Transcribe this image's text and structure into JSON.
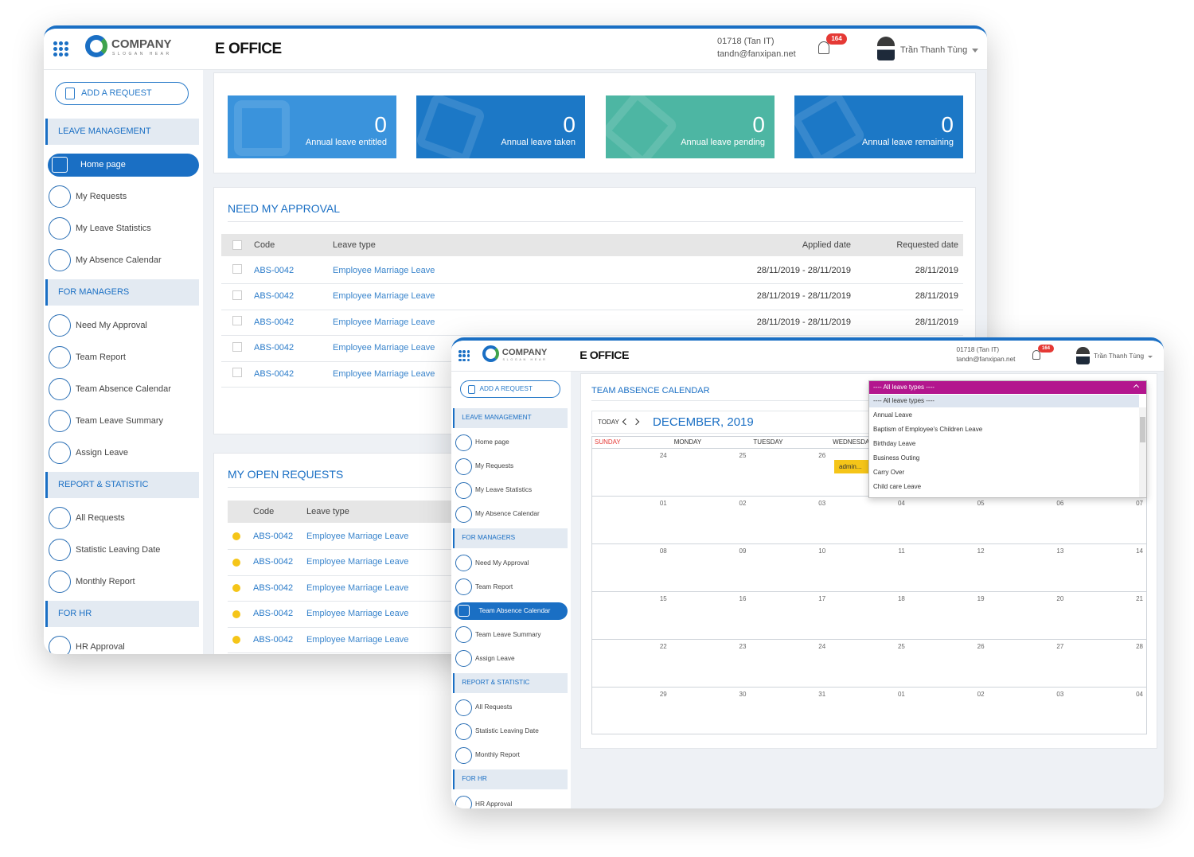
{
  "main_window": {
    "header": {
      "company": "COMPANY",
      "slogan": "SLOGAN HEAR",
      "app": "E OFFICE",
      "phone": "01718 (Tan IT)",
      "email": "tandn@fanxipan.net",
      "notifications": "164",
      "user": "Trần Thanh Tùng"
    },
    "sidebar": {
      "add_request": "ADD A REQUEST",
      "sections": [
        {
          "title": "LEAVE MANAGEMENT",
          "items": [
            {
              "label": "Home page",
              "active": true
            },
            {
              "label": "My Requests"
            },
            {
              "label": "My Leave Statistics"
            },
            {
              "label": "My Absence Calendar"
            }
          ]
        },
        {
          "title": "FOR MANAGERS",
          "items": [
            {
              "label": "Need My Approval"
            },
            {
              "label": "Team Report"
            },
            {
              "label": "Team Absence Calendar"
            },
            {
              "label": "Team Leave Summary"
            },
            {
              "label": "Assign Leave"
            }
          ]
        },
        {
          "title": "REPORT & STATISTIC",
          "items": [
            {
              "label": "All Requests"
            },
            {
              "label": "Statistic Leaving Date"
            },
            {
              "label": "Monthly Report"
            }
          ]
        },
        {
          "title": "FOR HR",
          "items": [
            {
              "label": "HR Approval"
            }
          ]
        }
      ]
    },
    "stats": [
      {
        "value": 0,
        "label": "Annual leave entitled",
        "color": "#3a93dc"
      },
      {
        "value": 0,
        "label": "Annual leave taken",
        "color": "#1c78c6"
      },
      {
        "value": 0,
        "label": "Annual leave pending",
        "color": "#4db6a3"
      },
      {
        "value": 0,
        "label": "Annual leave remaining",
        "color": "#1c78c6"
      }
    ],
    "need_approval": {
      "title": "NEED MY APPROVAL",
      "columns": [
        "Code",
        "Leave type",
        "Applied date",
        "Requested date"
      ],
      "rows": [
        [
          "ABS-0042",
          "Employee Marriage Leave",
          "28/11/2019 - 28/11/2019",
          "28/11/2019"
        ],
        [
          "ABS-0042",
          "Employee Marriage Leave",
          "28/11/2019 - 28/11/2019",
          "28/11/2019"
        ],
        [
          "ABS-0042",
          "Employee Marriage Leave",
          "28/11/2019 - 28/11/2019",
          "28/11/2019"
        ],
        [
          "ABS-0042",
          "Employee Marriage Leave"
        ],
        [
          "ABS-0042",
          "Employee Marriage Leave"
        ]
      ]
    },
    "open_requests": {
      "title": "MY OPEN REQUESTS",
      "columns": [
        "Code",
        "Leave type"
      ],
      "rows": [
        [
          "ABS-0042",
          "Employee Marriage Leave"
        ],
        [
          "ABS-0042",
          "Employee Marriage Leave"
        ],
        [
          "ABS-0042",
          "Employee Marriage Leave"
        ],
        [
          "ABS-0042",
          "Employee Marriage Leave"
        ],
        [
          "ABS-0042",
          "Employee Marriage Leave"
        ]
      ]
    }
  },
  "calendar_window": {
    "header": {
      "company": "COMPANY",
      "slogan": "SLOGAN HEAR",
      "app": "E OFFICE",
      "phone": "01718 (Tan IT)",
      "email": "tandn@fanxipan.net",
      "notifications": "164",
      "user": "Trần Thanh Tùng"
    },
    "sidebar": {
      "add_request": "ADD A REQUEST",
      "sections": [
        {
          "title": "LEAVE MANAGEMENT",
          "items": [
            {
              "label": "Home page"
            },
            {
              "label": "My Requests"
            },
            {
              "label": "My Leave Statistics"
            },
            {
              "label": "My Absence Calendar"
            }
          ]
        },
        {
          "title": "FOR MANAGERS",
          "items": [
            {
              "label": "Need My Approval"
            },
            {
              "label": "Team Report"
            },
            {
              "label": "Team Absence Calendar",
              "active": true
            },
            {
              "label": "Team Leave Summary"
            },
            {
              "label": "Assign Leave"
            }
          ]
        },
        {
          "title": "REPORT & STATISTIC",
          "items": [
            {
              "label": "All Requests"
            },
            {
              "label": "Statistic Leaving Date"
            },
            {
              "label": "Monthly Report"
            }
          ]
        },
        {
          "title": "FOR HR",
          "items": [
            {
              "label": "HR Approval"
            }
          ]
        }
      ]
    },
    "calendar": {
      "title": "TEAM ABSENCE CALENDAR",
      "today": "TODAY",
      "month": "DECEMBER, 2019",
      "weekdays": [
        "SUNDAY",
        "MONDAY",
        "TUESDAY",
        "WEDNESDAY"
      ],
      "weeks": [
        [
          "24",
          "25",
          "26"
        ],
        [
          "01",
          "02",
          "03",
          "04",
          "05",
          "06",
          "07"
        ],
        [
          "08",
          "09",
          "10",
          "11",
          "12",
          "13",
          "14"
        ],
        [
          "15",
          "16",
          "17",
          "18",
          "19",
          "20",
          "21"
        ],
        [
          "22",
          "23",
          "24",
          "25",
          "26",
          "27",
          "28"
        ],
        [
          "29",
          "30",
          "31",
          "01",
          "02",
          "03",
          "04"
        ]
      ],
      "event": "admin..."
    },
    "filter": {
      "selected": "---- All leave types ----",
      "options": [
        "---- All leave types ----",
        "Annual Leave",
        "Baptism of Employee's Children Leave",
        "Birthday Leave",
        "Business Outing",
        "Carry Over",
        "Child care Leave"
      ]
    }
  }
}
